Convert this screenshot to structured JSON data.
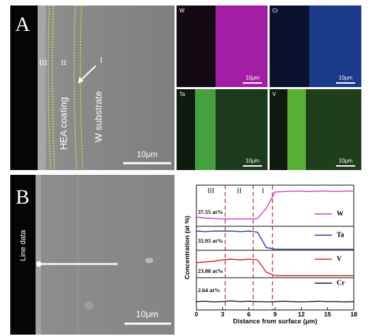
{
  "panel_a": {
    "label": "A",
    "regions": [
      "III",
      "II",
      "I"
    ],
    "coating": "HEA coating",
    "substrate": "W substrate",
    "scale_bar": "10μm",
    "maps": [
      {
        "element": "W",
        "scale_bar": "10μm"
      },
      {
        "element": "Cr",
        "scale_bar": "10μm"
      },
      {
        "element": "Ta",
        "scale_bar": "10μm"
      },
      {
        "element": "V",
        "scale_bar": "10μm"
      }
    ]
  },
  "panel_b": {
    "label": "B",
    "line_label": "Line data",
    "scale_bar": "10μm"
  },
  "chart_data": {
    "type": "line",
    "xlabel": "Distance from surface (μm)",
    "ylabel": "Concentration (at %)",
    "x": [
      0,
      1,
      2,
      3,
      4,
      5,
      6,
      7,
      8,
      9,
      10,
      11,
      12,
      13,
      14,
      15,
      16,
      17,
      18
    ],
    "xlim": [
      0,
      18
    ],
    "xticks": [
      0,
      3,
      6,
      9,
      12,
      15,
      18
    ],
    "regions": [
      "III",
      "II",
      "I"
    ],
    "region_boundaries": [
      3.3,
      6.5,
      8.7
    ],
    "series": [
      {
        "name": "W",
        "color": "#cc33cc",
        "ylim": [
          20,
          110
        ],
        "annotation": "37.55 at%",
        "values": [
          40,
          38,
          37,
          36,
          36,
          36,
          36,
          37,
          60,
          95,
          96,
          97,
          97,
          96,
          97,
          97,
          96,
          97,
          97
        ]
      },
      {
        "name": "Ta",
        "color": "#2233aa",
        "ylim": [
          0,
          45
        ],
        "annotation": "35.93 at%",
        "values": [
          36,
          35,
          36,
          36,
          36,
          35,
          36,
          34,
          5,
          2,
          2,
          2,
          2,
          2,
          2,
          2,
          2,
          2,
          2
        ]
      },
      {
        "name": "V",
        "color": "#cc2222",
        "ylim": [
          0,
          40
        ],
        "annotation": "23.88 at%",
        "values": [
          22,
          23,
          24,
          26,
          27,
          26,
          27,
          26,
          8,
          3,
          3,
          3,
          3,
          3,
          3,
          3,
          3,
          3,
          3
        ]
      },
      {
        "name": "Cr",
        "color": "#111111",
        "ylim": [
          0,
          10
        ],
        "annotation": "2.64 at%",
        "values": [
          2.6,
          2.7,
          2.5,
          2.6,
          2.8,
          2.6,
          2.7,
          2.6,
          2.5,
          2.6,
          2.7,
          2.6,
          2.5,
          2.6,
          2.7,
          2.6,
          2.6,
          2.5,
          2.6
        ]
      }
    ]
  }
}
